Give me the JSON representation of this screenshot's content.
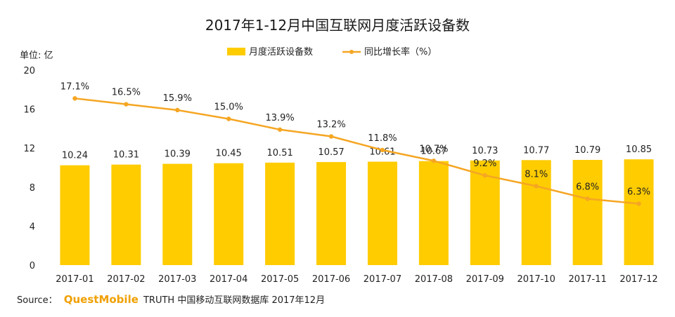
{
  "chart_data": {
    "type": "bar",
    "title": "2017年1-12月中国互联网月度活跃设备数",
    "ylabel": "单位: 亿",
    "ylim": [
      0,
      20
    ],
    "yticks": [
      0,
      4,
      8,
      12,
      16,
      20
    ],
    "categories": [
      "2017-01",
      "2017-02",
      "2017-03",
      "2017-04",
      "2017-05",
      "2017-06",
      "2017-07",
      "2017-08",
      "2017-09",
      "2017-10",
      "2017-11",
      "2017-12"
    ],
    "legend_position": "top-center",
    "series": [
      {
        "name": "月度活跃设备数",
        "type": "bar",
        "color": "#ffcc00",
        "values": [
          10.24,
          10.31,
          10.39,
          10.45,
          10.51,
          10.57,
          10.61,
          10.67,
          10.73,
          10.77,
          10.79,
          10.85
        ],
        "labels": [
          "10.24",
          "10.31",
          "10.39",
          "10.45",
          "10.51",
          "10.57",
          "10.61",
          "10.67",
          "10.73",
          "10.77",
          "10.79",
          "10.85"
        ]
      },
      {
        "name": "同比增长率（%）",
        "type": "line",
        "color": "#f5a623",
        "values": [
          17.1,
          16.5,
          15.9,
          15.0,
          13.9,
          13.2,
          11.8,
          10.7,
          9.2,
          8.1,
          6.8,
          6.3
        ],
        "labels": [
          "17.1%",
          "16.5%",
          "15.9%",
          "15.0%",
          "13.9%",
          "13.2%",
          "11.8%",
          "10.7%",
          "9.2%",
          "8.1%",
          "6.8%",
          "6.3%"
        ]
      }
    ]
  },
  "source": {
    "prefix": "Source：",
    "brand": "QuestMobile",
    "text": "TRUTH 中国移动互联网数据库 2017年12月"
  }
}
